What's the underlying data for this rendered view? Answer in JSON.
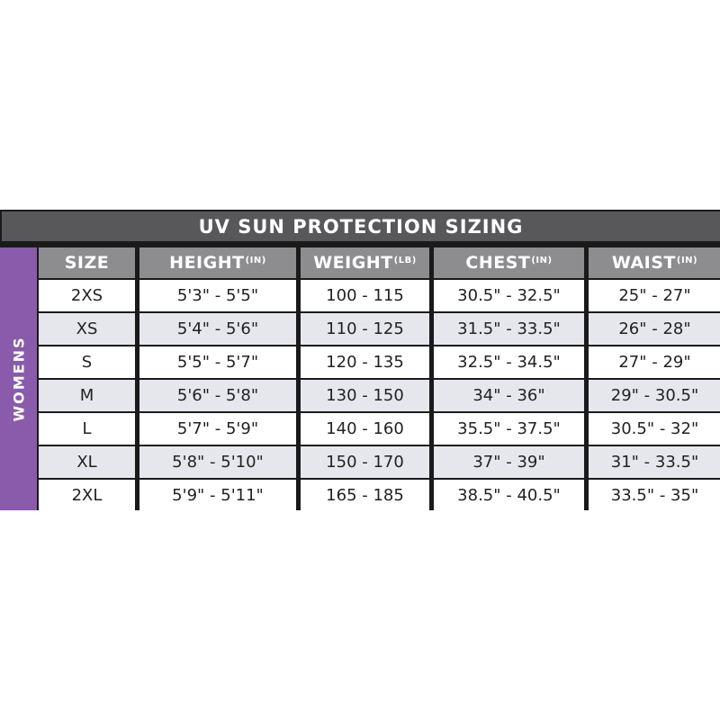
{
  "title": "UV SUN PROTECTION SIZING",
  "group_label": "WOMENS",
  "colors": {
    "title_bg": "#58585a",
    "header_bg": "#8d8d8f",
    "group_bg": "#8a5aab",
    "alt_row_bg": "#e6e7ec"
  },
  "columns": [
    {
      "label": "SIZE",
      "unit": ""
    },
    {
      "label": "HEIGHT",
      "unit": "(IN)"
    },
    {
      "label": "WEIGHT",
      "unit": "(LB)"
    },
    {
      "label": "CHEST",
      "unit": "(IN)"
    },
    {
      "label": "WAIST",
      "unit": "(IN)"
    }
  ],
  "rows": [
    [
      "2XS",
      "5'3\" - 5'5\"",
      "100 - 115",
      "30.5\" - 32.5\"",
      "25\" - 27\""
    ],
    [
      "XS",
      "5'4\" - 5'6\"",
      "110 - 125",
      "31.5\" - 33.5\"",
      "26\" - 28\""
    ],
    [
      "S",
      "5'5\" - 5'7\"",
      "120 - 135",
      "32.5\" - 34.5\"",
      "27\" - 29\""
    ],
    [
      "M",
      "5'6\" - 5'8\"",
      "130 - 150",
      "34\" - 36\"",
      "29\" - 30.5\""
    ],
    [
      "L",
      "5'7\" - 5'9\"",
      "140 - 160",
      "35.5\" - 37.5\"",
      "30.5\" - 32\""
    ],
    [
      "XL",
      "5'8\" - 5'10\"",
      "150 - 170",
      "37\" - 39\"",
      "31\" - 33.5\""
    ],
    [
      "2XL",
      "5'9\" - 5'11\"",
      "165 - 185",
      "38.5\" - 40.5\"",
      "33.5\" - 35\""
    ]
  ]
}
